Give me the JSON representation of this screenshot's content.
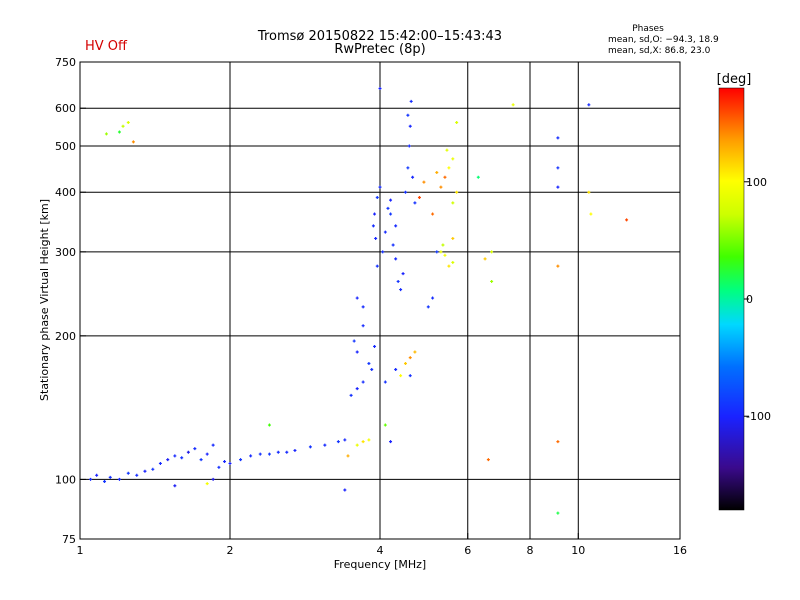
{
  "header": {
    "status": "HV Off",
    "title_line1": "Tromsø 20150822 15:42:00–15:43:43",
    "title_line2": "RwPretec (8p)"
  },
  "phases": {
    "heading": "Phases",
    "line1": "mean, sd,O: −94.3, 18.9",
    "line2": "mean, sd,X:  86.8, 23.0"
  },
  "colors": {
    "status": "#d40000",
    "grid": "#000000"
  },
  "chart_data": {
    "type": "scatter",
    "xlabel": "Frequency [MHz]",
    "ylabel": "Stationary phase Virtual Height [km]",
    "x_scale": "log",
    "y_scale": "log",
    "xlim": [
      1,
      16
    ],
    "ylim": [
      75,
      750
    ],
    "x_ticks": [
      1,
      2,
      4,
      6,
      8,
      10,
      16
    ],
    "x_tick_labels": [
      "1",
      "2",
      "4",
      "6",
      "8",
      "10",
      "16"
    ],
    "x_gridlines": [
      2,
      4,
      6,
      8,
      10
    ],
    "y_ticks": [
      75,
      100,
      200,
      300,
      400,
      500,
      600,
      750
    ],
    "y_tick_labels": [
      "75",
      "100",
      "200",
      "300",
      "400",
      "500",
      "600",
      "750"
    ],
    "y_gridlines": [
      100,
      200,
      300,
      400,
      500,
      600
    ],
    "colorbar": {
      "label": "[deg]",
      "range": [
        -180,
        180
      ],
      "ticks": [
        100,
        0,
        -100
      ],
      "tick_labels": [
        "100",
        "0",
        "-100"
      ]
    },
    "series": [
      {
        "values": [
          {
            "x": 1.05,
            "y": 100,
            "p": -95
          },
          {
            "x": 1.08,
            "y": 102,
            "p": -100
          },
          {
            "x": 1.12,
            "y": 99,
            "p": -90
          },
          {
            "x": 1.15,
            "y": 101,
            "p": -92
          },
          {
            "x": 1.2,
            "y": 100,
            "p": -98
          },
          {
            "x": 1.25,
            "y": 103,
            "p": -88
          },
          {
            "x": 1.3,
            "y": 102,
            "p": -94
          },
          {
            "x": 1.35,
            "y": 104,
            "p": -100
          },
          {
            "x": 1.4,
            "y": 105,
            "p": -91
          },
          {
            "x": 1.45,
            "y": 108,
            "p": -96
          },
          {
            "x": 1.5,
            "y": 110,
            "p": -105
          },
          {
            "x": 1.55,
            "y": 112,
            "p": -97
          },
          {
            "x": 1.6,
            "y": 111,
            "p": -92
          },
          {
            "x": 1.65,
            "y": 114,
            "p": -110
          },
          {
            "x": 1.7,
            "y": 116,
            "p": -95
          },
          {
            "x": 1.75,
            "y": 110,
            "p": -89
          },
          {
            "x": 1.8,
            "y": 113,
            "p": -100
          },
          {
            "x": 1.85,
            "y": 118,
            "p": -96
          },
          {
            "x": 1.9,
            "y": 106,
            "p": -93
          },
          {
            "x": 1.95,
            "y": 109,
            "p": -98
          },
          {
            "x": 2.0,
            "y": 108,
            "p": -101
          },
          {
            "x": 2.1,
            "y": 110,
            "p": -90
          },
          {
            "x": 2.2,
            "y": 112,
            "p": -96
          },
          {
            "x": 2.3,
            "y": 113,
            "p": -92
          },
          {
            "x": 2.4,
            "y": 113,
            "p": -88
          },
          {
            "x": 2.5,
            "y": 114,
            "p": -94
          },
          {
            "x": 2.7,
            "y": 115,
            "p": -99
          },
          {
            "x": 2.9,
            "y": 117,
            "p": -91
          },
          {
            "x": 3.1,
            "y": 118,
            "p": -95
          },
          {
            "x": 3.3,
            "y": 120,
            "p": -90
          },
          {
            "x": 3.4,
            "y": 121,
            "p": -97
          },
          {
            "x": 3.5,
            "y": 150,
            "p": -92
          },
          {
            "x": 3.6,
            "y": 155,
            "p": -100
          },
          {
            "x": 3.7,
            "y": 160,
            "p": -94
          },
          {
            "x": 3.8,
            "y": 175,
            "p": -89
          },
          {
            "x": 3.9,
            "y": 190,
            "p": -96
          },
          {
            "x": 3.85,
            "y": 170,
            "p": -93
          },
          {
            "x": 3.6,
            "y": 185,
            "p": -99
          },
          {
            "x": 3.55,
            "y": 195,
            "p": -90
          },
          {
            "x": 3.7,
            "y": 210,
            "p": -95
          },
          {
            "x": 3.95,
            "y": 280,
            "p": -92
          },
          {
            "x": 3.92,
            "y": 320,
            "p": -98
          },
          {
            "x": 3.88,
            "y": 340,
            "p": -94
          },
          {
            "x": 3.9,
            "y": 360,
            "p": -101
          },
          {
            "x": 3.95,
            "y": 390,
            "p": -88
          },
          {
            "x": 4.0,
            "y": 410,
            "p": -95
          },
          {
            "x": 4.05,
            "y": 300,
            "p": -92
          },
          {
            "x": 4.1,
            "y": 330,
            "p": -96
          },
          {
            "x": 4.15,
            "y": 370,
            "p": -90
          },
          {
            "x": 4.2,
            "y": 385,
            "p": -99
          },
          {
            "x": 4.25,
            "y": 310,
            "p": -93
          },
          {
            "x": 4.3,
            "y": 290,
            "p": -97
          },
          {
            "x": 4.35,
            "y": 260,
            "p": -91
          },
          {
            "x": 4.4,
            "y": 250,
            "p": -95
          },
          {
            "x": 4.45,
            "y": 270,
            "p": -100
          },
          {
            "x": 4.5,
            "y": 400,
            "p": -92
          },
          {
            "x": 4.55,
            "y": 450,
            "p": -88
          },
          {
            "x": 4.58,
            "y": 500,
            "p": -95
          },
          {
            "x": 4.6,
            "y": 550,
            "p": -98
          },
          {
            "x": 4.62,
            "y": 620,
            "p": -94
          },
          {
            "x": 4.55,
            "y": 580,
            "p": -90
          },
          {
            "x": 4.65,
            "y": 430,
            "p": -97
          },
          {
            "x": 4.7,
            "y": 380,
            "p": -92
          },
          {
            "x": 4.3,
            "y": 340,
            "p": -96
          },
          {
            "x": 4.2,
            "y": 360,
            "p": -89
          },
          {
            "x": 3.7,
            "y": 230,
            "p": -95
          },
          {
            "x": 3.6,
            "y": 240,
            "p": -99
          },
          {
            "x": 5.0,
            "y": 230,
            "p": -90
          },
          {
            "x": 5.1,
            "y": 240,
            "p": -94
          },
          {
            "x": 5.2,
            "y": 300,
            "p": -88
          },
          {
            "x": 4.1,
            "y": 160,
            "p": -92
          },
          {
            "x": 4.3,
            "y": 170,
            "p": -95
          },
          {
            "x": 4.6,
            "y": 165,
            "p": -93
          },
          {
            "x": 4.0,
            "y": 660,
            "p": -100
          },
          {
            "x": 10.5,
            "y": 610,
            "p": -95
          },
          {
            "x": 9.1,
            "y": 450,
            "p": -92
          },
          {
            "x": 9.1,
            "y": 520,
            "p": -94
          },
          {
            "x": 9.1,
            "y": 410,
            "p": -99
          },
          {
            "x": 3.4,
            "y": 95,
            "p": -100
          },
          {
            "x": 1.55,
            "y": 97,
            "p": -105
          },
          {
            "x": 1.85,
            "y": 100,
            "p": -110
          },
          {
            "x": 4.2,
            "y": 120,
            "p": -101
          },
          {
            "x": 2.6,
            "y": 114,
            "p": -96
          }
        ]
      },
      {
        "values": [
          {
            "x": 1.13,
            "y": 530,
            "p": 60
          },
          {
            "x": 1.2,
            "y": 535,
            "p": 25
          },
          {
            "x": 1.22,
            "y": 550,
            "p": 70
          },
          {
            "x": 1.25,
            "y": 560,
            "p": 80
          },
          {
            "x": 1.28,
            "y": 510,
            "p": 140
          },
          {
            "x": 3.6,
            "y": 118,
            "p": 90
          },
          {
            "x": 3.7,
            "y": 120,
            "p": 110
          },
          {
            "x": 3.8,
            "y": 121,
            "p": 95
          },
          {
            "x": 3.45,
            "y": 112,
            "p": 130
          },
          {
            "x": 4.5,
            "y": 175,
            "p": 120
          },
          {
            "x": 4.6,
            "y": 180,
            "p": 140
          },
          {
            "x": 4.4,
            "y": 165,
            "p": 100
          },
          {
            "x": 4.7,
            "y": 185,
            "p": 125
          },
          {
            "x": 5.3,
            "y": 300,
            "p": 90
          },
          {
            "x": 5.4,
            "y": 295,
            "p": 95
          },
          {
            "x": 5.5,
            "y": 280,
            "p": 110
          },
          {
            "x": 5.6,
            "y": 285,
            "p": 80
          },
          {
            "x": 5.35,
            "y": 310,
            "p": 70
          },
          {
            "x": 5.6,
            "y": 320,
            "p": 120
          },
          {
            "x": 5.3,
            "y": 410,
            "p": 140
          },
          {
            "x": 5.4,
            "y": 430,
            "p": 150
          },
          {
            "x": 5.5,
            "y": 450,
            "p": 100
          },
          {
            "x": 5.6,
            "y": 470,
            "p": 90
          },
          {
            "x": 5.7,
            "y": 400,
            "p": 110
          },
          {
            "x": 5.2,
            "y": 440,
            "p": 130
          },
          {
            "x": 5.45,
            "y": 490,
            "p": 85
          },
          {
            "x": 5.6,
            "y": 380,
            "p": 75
          },
          {
            "x": 4.8,
            "y": 390,
            "p": 160
          },
          {
            "x": 4.9,
            "y": 420,
            "p": 140
          },
          {
            "x": 5.1,
            "y": 360,
            "p": 150
          },
          {
            "x": 6.6,
            "y": 110,
            "p": 150
          },
          {
            "x": 6.5,
            "y": 290,
            "p": 120
          },
          {
            "x": 6.7,
            "y": 300,
            "p": 80
          },
          {
            "x": 7.4,
            "y": 610,
            "p": 90
          },
          {
            "x": 9.1,
            "y": 280,
            "p": 140
          },
          {
            "x": 9.1,
            "y": 120,
            "p": 150
          },
          {
            "x": 10.5,
            "y": 400,
            "p": 110
          },
          {
            "x": 10.6,
            "y": 360,
            "p": 100
          },
          {
            "x": 12.5,
            "y": 350,
            "p": 160
          },
          {
            "x": 4.1,
            "y": 130,
            "p": 45
          },
          {
            "x": 2.4,
            "y": 130,
            "p": 35
          },
          {
            "x": 1.8,
            "y": 98,
            "p": 95
          },
          {
            "x": 9.1,
            "y": 85,
            "p": 20
          },
          {
            "x": 6.3,
            "y": 430,
            "p": 10
          },
          {
            "x": 6.7,
            "y": 260,
            "p": 60
          },
          {
            "x": 5.7,
            "y": 560,
            "p": 80
          }
        ]
      }
    ]
  }
}
